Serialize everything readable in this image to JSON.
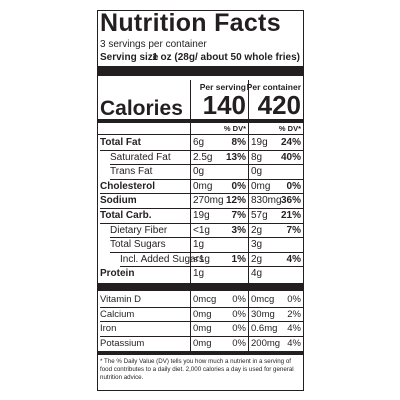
{
  "title": "Nutrition Facts",
  "servings": "3 servings per container",
  "serving_size": {
    "label": "Serving size",
    "value": "1 oz (28g/ about 50 whole fries)"
  },
  "columns": [
    "Per serving",
    "Per container"
  ],
  "calories": {
    "label": "Calories",
    "values": [
      "140",
      "420"
    ]
  },
  "dv_header": [
    "% DV*",
    "% DV*"
  ],
  "nutrients": [
    {
      "name": "Total Fat",
      "bold": true,
      "level": 0,
      "amount": [
        "6g",
        "19g"
      ],
      "dv": [
        "8%",
        "24%"
      ]
    },
    {
      "name": "Saturated Fat",
      "bold": false,
      "level": 1,
      "amount": [
        "2.5g",
        "8g"
      ],
      "dv": [
        "13%",
        "40%"
      ]
    },
    {
      "name": "Trans Fat",
      "bold": false,
      "level": 1,
      "amount": [
        "0g",
        "0g"
      ],
      "dv": [
        null,
        null
      ]
    },
    {
      "name": "Cholesterol",
      "bold": true,
      "level": 0,
      "amount": [
        "0mg",
        "0mg"
      ],
      "dv": [
        "0%",
        "0%"
      ]
    },
    {
      "name": "Sodium",
      "bold": true,
      "level": 0,
      "amount": [
        "270mg",
        "830mg"
      ],
      "dv": [
        "12%",
        "36%"
      ]
    },
    {
      "name": "Total Carb.",
      "bold": true,
      "level": 0,
      "amount": [
        "19g",
        "57g"
      ],
      "dv": [
        "7%",
        "21%"
      ]
    },
    {
      "name": "Dietary Fiber",
      "bold": false,
      "level": 1,
      "amount": [
        "<1g",
        "2g"
      ],
      "dv": [
        "3%",
        "7%"
      ]
    },
    {
      "name": "Total Sugars",
      "bold": false,
      "level": 1,
      "amount": [
        "1g",
        "3g"
      ],
      "dv": [
        null,
        null
      ]
    },
    {
      "name": "Incl. Added Sugars",
      "bold": false,
      "level": 2,
      "amount": [
        "<1g",
        "2g"
      ],
      "dv": [
        "1%",
        "4%"
      ]
    },
    {
      "name": "Protein",
      "bold": true,
      "level": 0,
      "amount": [
        "1g",
        "4g"
      ],
      "dv": [
        null,
        null
      ]
    }
  ],
  "vitamins": [
    {
      "name": "Vitamin D",
      "amount": [
        "0mcg",
        "0mcg"
      ],
      "dv": [
        "0%",
        "0%"
      ]
    },
    {
      "name": "Calcium",
      "amount": [
        "0mg",
        "30mg"
      ],
      "dv": [
        "0%",
        "2%"
      ]
    },
    {
      "name": "Iron",
      "amount": [
        "0mg",
        "0.6mg"
      ],
      "dv": [
        "0%",
        "4%"
      ]
    },
    {
      "name": "Potassium",
      "amount": [
        "0mg",
        "200mg"
      ],
      "dv": [
        "0%",
        "4%"
      ]
    }
  ],
  "footnote": "* The % Daily Value (DV) tells you how much a nutrient in a serving of food contributes to a daily diet. 2,000 calories a day is used for general nutrition advice."
}
